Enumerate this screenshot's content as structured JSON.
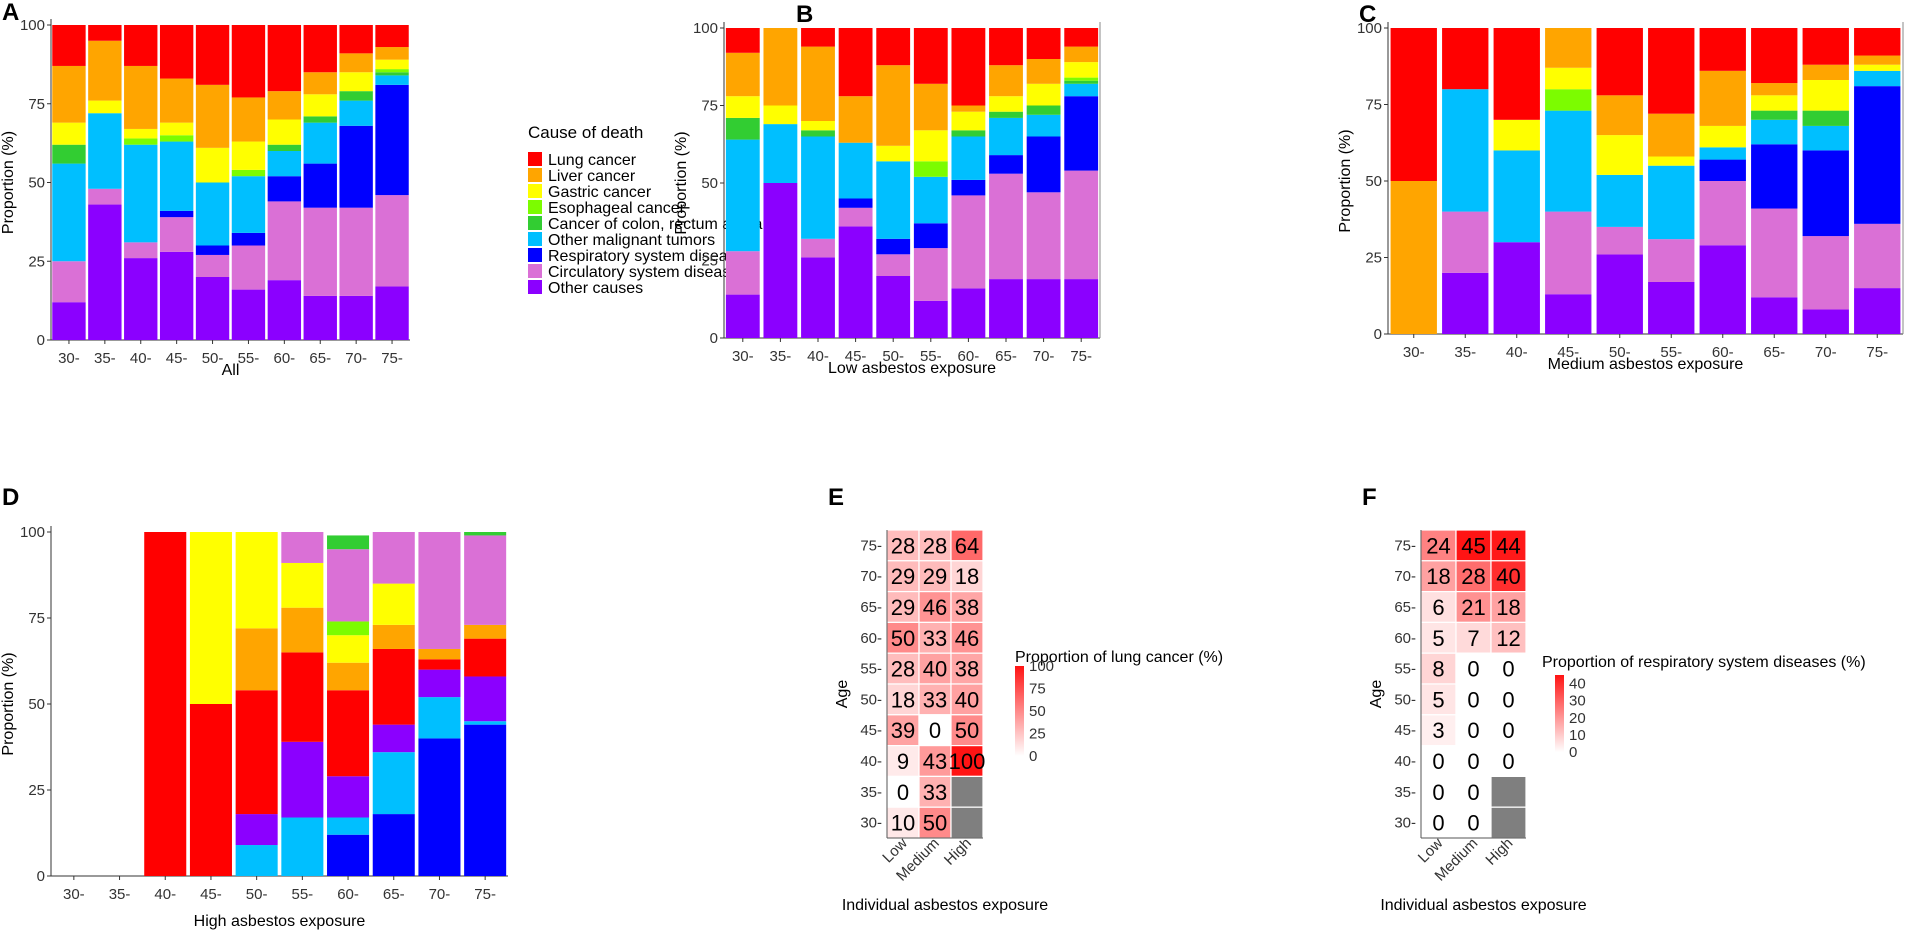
{
  "ages": [
    "30-",
    "35-",
    "40-",
    "45-",
    "50-",
    "55-",
    "60-",
    "65-",
    "70-",
    "75-"
  ],
  "causes": [
    "Lung cancer",
    "Liver cancer",
    "Gastric cancer",
    "Esophageal cancer",
    "Cancer of colon, rectum and anus",
    "Other malignant tumors",
    "Respiratory system diseases",
    "Circulatory system diseases",
    "Other causes"
  ],
  "colors": {
    "Lung cancer": "#ff0000",
    "Liver cancer": "#ffa500",
    "Gastric cancer": "#ffff00",
    "Esophageal cancer": "#7cfc00",
    "Cancer of colon, rectum and anus": "#32cd32",
    "Other malignant tumors": "#00bfff",
    "Respiratory system diseases": "#0000ff",
    "Circulatory system diseases": "#da70d6",
    "Other causes": "#8b00ff"
  },
  "legend_title": "Cause of death",
  "y_ticks": [
    "0",
    "25",
    "50",
    "75",
    "100"
  ],
  "chart_data": [
    {
      "panel": "A",
      "type": "bar",
      "stacked": true,
      "xlabel": "All",
      "ylabel": "Proportion (%)",
      "ylim": [
        0,
        100
      ],
      "stack_order": [
        "Other causes",
        "Circulatory system diseases",
        "Respiratory system diseases",
        "Other malignant tumors",
        "Cancer of colon, rectum and anus",
        "Esophageal cancer",
        "Gastric cancer",
        "Liver cancer",
        "Lung cancer"
      ],
      "values": [
        [
          12,
          13,
          0,
          31,
          6,
          0,
          7,
          18,
          13
        ],
        [
          43,
          5,
          0,
          24,
          0,
          0,
          4,
          19,
          5
        ],
        [
          26,
          5,
          0,
          31,
          0,
          2,
          3,
          20,
          13
        ],
        [
          28,
          11,
          2,
          22,
          0,
          2,
          4,
          14,
          17
        ],
        [
          20,
          7,
          3,
          20,
          0,
          0,
          11,
          20,
          19
        ],
        [
          16,
          14,
          4,
          18,
          0,
          2,
          9,
          14,
          23
        ],
        [
          19,
          25,
          8,
          8,
          2,
          0,
          8,
          9,
          21
        ],
        [
          14,
          28,
          14,
          13,
          2,
          0,
          7,
          7,
          15
        ],
        [
          14,
          28,
          26,
          8,
          3,
          0,
          6,
          6,
          9
        ],
        [
          17,
          29,
          35,
          3,
          1,
          1,
          3,
          4,
          7
        ]
      ]
    },
    {
      "panel": "B",
      "type": "bar",
      "stacked": true,
      "xlabel": "Low asbestos exposure",
      "ylabel": "Proportion (%)",
      "ylim": [
        0,
        100
      ],
      "stack_order": [
        "Other causes",
        "Circulatory system diseases",
        "Respiratory system diseases",
        "Other malignant tumors",
        "Cancer of colon, rectum and anus",
        "Esophageal cancer",
        "Gastric cancer",
        "Liver cancer",
        "Lung cancer"
      ],
      "values": [
        [
          14,
          14,
          0,
          36,
          7,
          0,
          7,
          14,
          8
        ],
        [
          50,
          0,
          0,
          19,
          0,
          0,
          6,
          25,
          0
        ],
        [
          26,
          6,
          0,
          33,
          2,
          0,
          3,
          24,
          6
        ],
        [
          36,
          6,
          3,
          18,
          0,
          0,
          0,
          15,
          22
        ],
        [
          20,
          7,
          5,
          25,
          0,
          0,
          5,
          26,
          12
        ],
        [
          12,
          17,
          8,
          15,
          0,
          5,
          10,
          15,
          18
        ],
        [
          16,
          30,
          5,
          14,
          2,
          0,
          6,
          2,
          25
        ],
        [
          19,
          34,
          6,
          12,
          2,
          0,
          5,
          10,
          12
        ],
        [
          19,
          28,
          18,
          7,
          3,
          0,
          7,
          8,
          10
        ],
        [
          19,
          35,
          24,
          4,
          1,
          1,
          5,
          5,
          6
        ]
      ]
    },
    {
      "panel": "C",
      "type": "bar",
      "stacked": true,
      "xlabel": "Medium asbestos exposure",
      "ylabel": "Proportion (%)",
      "ylim": [
        0,
        100
      ],
      "stack_order": [
        "Other causes",
        "Circulatory system diseases",
        "Respiratory system diseases",
        "Other malignant tumors",
        "Cancer of colon, rectum and anus",
        "Esophageal cancer",
        "Gastric cancer",
        "Liver cancer",
        "Lung cancer"
      ],
      "values": [
        [
          0,
          0,
          0,
          0,
          0,
          0,
          0,
          50,
          50
        ],
        [
          20,
          20,
          0,
          40,
          0,
          0,
          0,
          0,
          20
        ],
        [
          30,
          0,
          0,
          30,
          0,
          0,
          10,
          0,
          30
        ],
        [
          13,
          27,
          0,
          33,
          0,
          7,
          7,
          13,
          0
        ],
        [
          26,
          9,
          0,
          17,
          0,
          0,
          13,
          13,
          22
        ],
        [
          17,
          14,
          0,
          24,
          0,
          0,
          3,
          14,
          28
        ],
        [
          29,
          21,
          7,
          4,
          0,
          0,
          7,
          18,
          14
        ],
        [
          12,
          29,
          21,
          8,
          3,
          0,
          5,
          4,
          18
        ],
        [
          8,
          24,
          28,
          8,
          5,
          0,
          10,
          5,
          12
        ],
        [
          15,
          21,
          45,
          5,
          0,
          0,
          2,
          3,
          9
        ]
      ]
    },
    {
      "panel": "D",
      "type": "bar",
      "stacked": true,
      "xlabel": "High asbestos exposure",
      "ylabel": "Proportion (%)",
      "ylim": [
        0,
        100
      ],
      "stack_order": [
        "Respiratory system diseases",
        "Other malignant tumors",
        "Other causes",
        "Lung cancer",
        "Liver cancer",
        "Gastric cancer",
        "Esophageal cancer",
        "Circulatory system diseases",
        "Cancer of colon, rectum and anus"
      ],
      "values": [
        [
          0,
          0,
          0,
          0,
          0,
          0,
          0,
          0,
          0
        ],
        [
          0,
          0,
          0,
          0,
          0,
          0,
          0,
          0,
          0
        ],
        [
          0,
          0,
          0,
          100,
          0,
          0,
          0,
          0,
          0
        ],
        [
          0,
          0,
          0,
          50,
          0,
          50,
          0,
          0,
          0
        ],
        [
          0,
          9,
          9,
          36,
          18,
          28,
          0,
          0,
          0
        ],
        [
          0,
          17,
          22,
          26,
          13,
          13,
          0,
          9,
          0
        ],
        [
          12,
          5,
          12,
          25,
          8,
          8,
          4,
          21,
          4
        ],
        [
          18,
          18,
          8,
          22,
          7,
          12,
          0,
          15,
          0
        ],
        [
          40,
          12,
          8,
          3,
          3,
          0,
          0,
          34,
          0
        ],
        [
          44,
          1,
          13,
          11,
          4,
          0,
          0,
          26,
          1
        ]
      ]
    },
    {
      "panel": "E",
      "type": "heatmap",
      "title": "Proportion of lung cancer (%)",
      "xlabel": "Individual asbestos exposure",
      "ylabel": "Age",
      "x": [
        "Low",
        "Medium",
        "High"
      ],
      "y_rows": [
        "75-",
        "70-",
        "65-",
        "60-",
        "55-",
        "50-",
        "45-",
        "40-",
        "35-",
        "30-"
      ],
      "cells": [
        [
          28,
          28,
          64
        ],
        [
          29,
          29,
          18
        ],
        [
          29,
          46,
          38
        ],
        [
          50,
          33,
          46
        ],
        [
          28,
          40,
          38
        ],
        [
          18,
          33,
          40
        ],
        [
          39,
          0,
          50
        ],
        [
          9,
          43,
          100
        ],
        [
          0,
          33,
          null
        ],
        [
          10,
          50,
          null
        ]
      ],
      "scale": {
        "min": 0,
        "max": 100,
        "ticks": [
          "100",
          "75",
          "50",
          "25",
          "0"
        ]
      }
    },
    {
      "panel": "F",
      "type": "heatmap",
      "title": "Proportion of respiratory system diseases (%)",
      "xlabel": "Individual asbestos exposure",
      "ylabel": "Age",
      "x": [
        "Low",
        "Medium",
        "High"
      ],
      "y_rows": [
        "75-",
        "70-",
        "65-",
        "60-",
        "55-",
        "50-",
        "45-",
        "40-",
        "35-",
        "30-"
      ],
      "cells": [
        [
          24,
          45,
          44
        ],
        [
          18,
          28,
          40
        ],
        [
          6,
          21,
          18
        ],
        [
          5,
          7,
          12
        ],
        [
          8,
          0,
          0
        ],
        [
          5,
          0,
          0
        ],
        [
          3,
          0,
          0
        ],
        [
          0,
          0,
          0
        ],
        [
          0,
          0,
          null
        ],
        [
          0,
          0,
          null
        ]
      ],
      "scale": {
        "min": 0,
        "max": 45,
        "ticks": [
          "40",
          "30",
          "20",
          "10",
          "0"
        ]
      }
    }
  ]
}
